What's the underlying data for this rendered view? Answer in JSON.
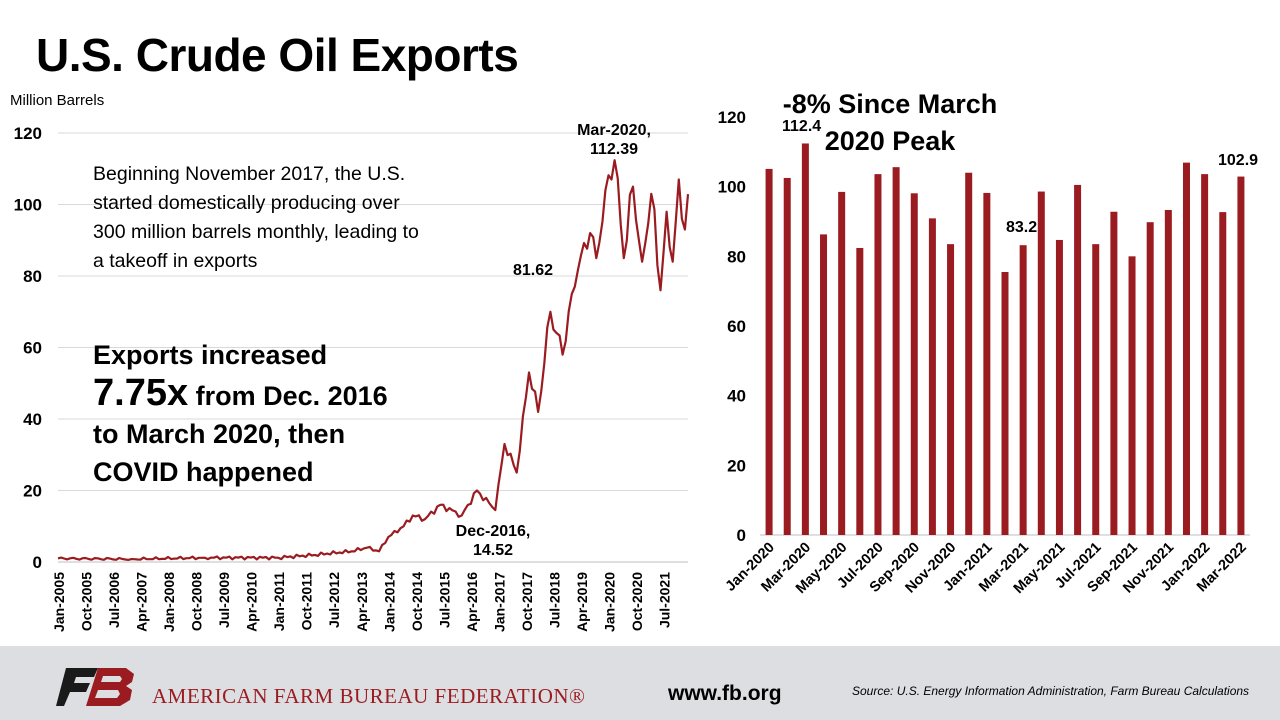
{
  "title": "U.S. Crude Oil Exports",
  "left_panel": {
    "unit_label": "Million Barrels",
    "note": "Beginning November 2017, the U.S. started domestically producing over 300 million barrels monthly, leading to a takeoff in exports",
    "big_note_line1": "Exports increased",
    "big_note_number": "7.75x",
    "big_note_line2": " from Dec. 2016",
    "big_note_line3": "to March 2020, then",
    "big_note_line4": "COVID happened",
    "annotations": {
      "peak_label": "Mar-2020,",
      "peak_value": "112.39",
      "mid_value": "81.62",
      "dec_label": "Dec-2016,",
      "dec_value": "14.52"
    }
  },
  "right_panel": {
    "title_line1": "-8% Since March",
    "title_line2": "2020 Peak",
    "annotations": {
      "first": "112.4",
      "mid": "83.2",
      "last": "102.9"
    }
  },
  "footer": {
    "org": "AMERICAN FARM BUREAU FEDERATION®",
    "website": "www.fb.org",
    "source": "Source: U.S. Energy Information Administration, Farm Bureau Calculations"
  },
  "colors": {
    "series": "#9b1c20",
    "grid": "#d9d9d9",
    "footer_bg": "#dcdee2"
  },
  "chart_data": [
    {
      "type": "line",
      "ylim": [
        0,
        120
      ],
      "yticks": [
        0,
        20,
        40,
        60,
        80,
        100,
        120
      ],
      "grid": true,
      "x_tick_labels": [
        "Jan-2005",
        "Oct-2005",
        "Jul-2006",
        "Apr-2007",
        "Jan-2008",
        "Oct-2008",
        "Jul-2009",
        "Apr-2010",
        "Jan-2011",
        "Oct-2011",
        "Jul-2012",
        "Apr-2013",
        "Jan-2014",
        "Oct-2014",
        "Jul-2015",
        "Apr-2016",
        "Jan-2017",
        "Oct-2017",
        "Jul-2018",
        "Apr-2019",
        "Jan-2020",
        "Oct-2020",
        "Jul-2021"
      ],
      "x_start": "Jan-2005",
      "x_end": "Mar-2022",
      "keypoints": [
        {
          "x": "Jan-2005",
          "y": 1
        },
        {
          "x": "Jan-2007",
          "y": 0.8
        },
        {
          "x": "Jan-2009",
          "y": 1.2
        },
        {
          "x": "Jan-2011",
          "y": 1.2
        },
        {
          "x": "Jan-2012",
          "y": 2
        },
        {
          "x": "Jan-2013",
          "y": 3
        },
        {
          "x": "Jun-2013",
          "y": 4
        },
        {
          "x": "Oct-2013",
          "y": 3
        },
        {
          "x": "Jan-2014",
          "y": 7
        },
        {
          "x": "Jun-2014",
          "y": 10
        },
        {
          "x": "Sep-2014",
          "y": 13
        },
        {
          "x": "Jan-2015",
          "y": 12
        },
        {
          "x": "Jun-2015",
          "y": 16
        },
        {
          "x": "Jan-2016",
          "y": 13
        },
        {
          "x": "Jun-2016",
          "y": 20
        },
        {
          "x": "Dec-2016",
          "y": 14.52
        },
        {
          "x": "Mar-2017",
          "y": 33
        },
        {
          "x": "Jul-2017",
          "y": 25
        },
        {
          "x": "Nov-2017",
          "y": 53
        },
        {
          "x": "Feb-2018",
          "y": 42
        },
        {
          "x": "Jun-2018",
          "y": 70
        },
        {
          "x": "Oct-2018",
          "y": 58
        },
        {
          "x": "Jan-2019",
          "y": 75
        },
        {
          "x": "Mar-2019",
          "y": 81.62
        },
        {
          "x": "Jul-2019",
          "y": 92
        },
        {
          "x": "Sep-2019",
          "y": 85
        },
        {
          "x": "Dec-2019",
          "y": 104
        },
        {
          "x": "Mar-2020",
          "y": 112.39
        },
        {
          "x": "Jun-2020",
          "y": 85
        },
        {
          "x": "Sep-2020",
          "y": 105
        },
        {
          "x": "Dec-2020",
          "y": 84
        },
        {
          "x": "Mar-2021",
          "y": 103
        },
        {
          "x": "Jun-2021",
          "y": 76
        },
        {
          "x": "Aug-2021",
          "y": 98
        },
        {
          "x": "Oct-2021",
          "y": 84
        },
        {
          "x": "Dec-2021",
          "y": 107
        },
        {
          "x": "Feb-2022",
          "y": 93
        },
        {
          "x": "Mar-2022",
          "y": 102.9
        }
      ]
    },
    {
      "type": "bar",
      "ylim": [
        0,
        120
      ],
      "yticks": [
        0,
        20,
        40,
        60,
        80,
        100,
        120
      ],
      "grid": false,
      "categories": [
        "Jan-2020",
        "Feb-2020",
        "Mar-2020",
        "Apr-2020",
        "May-2020",
        "Jun-2020",
        "Jul-2020",
        "Aug-2020",
        "Sep-2020",
        "Oct-2020",
        "Nov-2020",
        "Dec-2020",
        "Jan-2021",
        "Feb-2021",
        "Mar-2021",
        "Apr-2021",
        "May-2021",
        "Jun-2021",
        "Jul-2021",
        "Aug-2021",
        "Sep-2021",
        "Oct-2021",
        "Nov-2021",
        "Dec-2021",
        "Jan-2022",
        "Feb-2022",
        "Mar-2022"
      ],
      "x_tick_labels": [
        "Jan-2020",
        "Mar-2020",
        "May-2020",
        "Jul-2020",
        "Sep-2020",
        "Nov-2020",
        "Jan-2021",
        "Mar-2021",
        "May-2021",
        "Jul-2021",
        "Sep-2021",
        "Nov-2021",
        "Jan-2022",
        "Mar-2022"
      ],
      "values": [
        105.1,
        102.5,
        112.4,
        86.3,
        98.5,
        82.4,
        103.6,
        105.6,
        98.1,
        90.9,
        83.5,
        104.0,
        98.2,
        75.5,
        83.2,
        98.6,
        84.7,
        100.5,
        83.5,
        92.8,
        80.0,
        89.8,
        93.3,
        106.9,
        103.6,
        92.7,
        102.9
      ]
    }
  ]
}
